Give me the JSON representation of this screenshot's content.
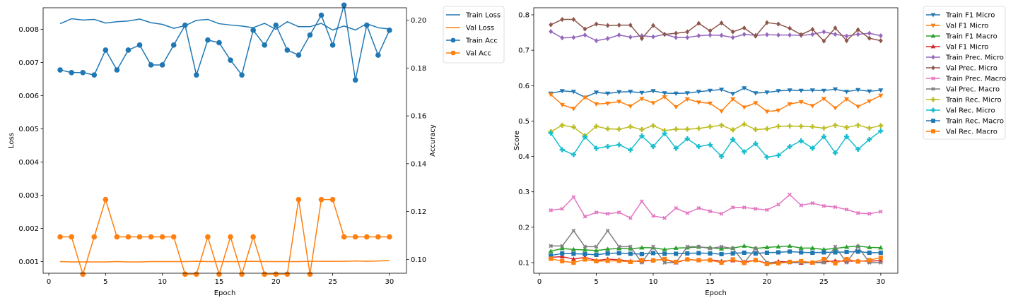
{
  "chart_data": [
    {
      "type": "line",
      "xlabel": "Epoch",
      "ylabel": "Loss",
      "y2label": "Accuracy",
      "xlim": [
        -0.5,
        31.5
      ],
      "ylim": [
        0.00065,
        0.00865
      ],
      "y2lim": [
        0.0942,
        0.2052
      ],
      "xticks": [
        "0",
        "5",
        "10",
        "15",
        "20",
        "25",
        "30"
      ],
      "yticks": [
        "0.001",
        "0.002",
        "0.003",
        "0.004",
        "0.005",
        "0.006",
        "0.007",
        "0.008"
      ],
      "y2ticks": [
        "0.10",
        "0.12",
        "0.14",
        "0.16",
        "0.18",
        "0.20"
      ],
      "legend_position": "outside-right",
      "x": [
        1,
        2,
        3,
        4,
        5,
        6,
        7,
        8,
        9,
        10,
        11,
        12,
        13,
        14,
        15,
        16,
        17,
        18,
        19,
        20,
        21,
        22,
        23,
        24,
        25,
        26,
        27,
        28,
        29,
        30
      ],
      "series": [
        {
          "name": "Train Loss",
          "axis": "left",
          "color": "#1f77b4",
          "marker": "none",
          "values": [
            0.00817,
            0.00832,
            0.00828,
            0.0083,
            0.00819,
            0.00823,
            0.00825,
            0.00831,
            0.0082,
            0.00815,
            0.00803,
            0.00811,
            0.00827,
            0.0083,
            0.00817,
            0.00813,
            0.0081,
            0.00805,
            0.00818,
            0.008,
            0.00823,
            0.00808,
            0.00808,
            0.00818,
            0.00798,
            0.0081,
            0.00798,
            0.00817,
            0.00805,
            0.00801
          ]
        },
        {
          "name": "Val Loss",
          "axis": "left",
          "color": "#ff7f0e",
          "marker": "none",
          "values": [
            0.001,
            0.00099,
            0.00099,
            0.00099,
            0.00099,
            0.001,
            0.00099,
            0.00099,
            0.001,
            0.001,
            0.001,
            0.001,
            0.00101,
            0.001,
            0.001,
            0.001,
            0.001,
            0.00101,
            0.001,
            0.001,
            0.001,
            0.001,
            0.00101,
            0.00101,
            0.00101,
            0.00101,
            0.00102,
            0.00101,
            0.00102,
            0.00103
          ]
        },
        {
          "name": "Train Acc",
          "axis": "right",
          "color": "#1f77b4",
          "marker": "circle",
          "values": [
            0.1792,
            0.1781,
            0.1781,
            0.1771,
            0.1875,
            0.1792,
            0.1875,
            0.1896,
            0.1813,
            0.1813,
            0.1896,
            0.1979,
            0.1771,
            0.1917,
            0.1906,
            0.1833,
            0.1771,
            0.1958,
            0.1896,
            0.1979,
            0.1875,
            0.1854,
            0.1938,
            0.2021,
            0.1896,
            0.2063,
            0.175,
            0.1979,
            0.1854,
            0.1958
          ]
        },
        {
          "name": "Val Acc",
          "axis": "right",
          "color": "#ff7f0e",
          "marker": "circle",
          "values": [
            0.1094,
            0.1094,
            0.0938,
            0.1094,
            0.125,
            0.1094,
            0.1094,
            0.1094,
            0.1094,
            0.1094,
            0.1094,
            0.0938,
            0.0938,
            0.1094,
            0.0938,
            0.1094,
            0.0938,
            0.1094,
            0.0938,
            0.0938,
            0.0938,
            0.125,
            0.0938,
            0.125,
            0.125,
            0.1094,
            0.1094,
            0.1094,
            0.1094,
            0.1094
          ]
        }
      ]
    },
    {
      "type": "line",
      "xlabel": "Epoch",
      "ylabel": "Score",
      "xlim": [
        -0.5,
        31.5
      ],
      "ylim": [
        0.07,
        0.82
      ],
      "xticks": [
        "0",
        "5",
        "10",
        "15",
        "20",
        "25",
        "30"
      ],
      "yticks": [
        "0.1",
        "0.2",
        "0.3",
        "0.4",
        "0.5",
        "0.6",
        "0.7",
        "0.8"
      ],
      "legend_position": "outside-right",
      "x": [
        1,
        2,
        3,
        4,
        5,
        6,
        7,
        8,
        9,
        10,
        11,
        12,
        13,
        14,
        15,
        16,
        17,
        18,
        19,
        20,
        21,
        22,
        23,
        24,
        25,
        26,
        27,
        28,
        29,
        30
      ],
      "series": [
        {
          "name": "Train F1 Micro",
          "color": "#1f77b4",
          "marker": "tri_down",
          "values": [
            0.578,
            0.585,
            0.583,
            0.567,
            0.581,
            0.578,
            0.582,
            0.583,
            0.58,
            0.585,
            0.579,
            0.578,
            0.579,
            0.583,
            0.586,
            0.589,
            0.577,
            0.593,
            0.579,
            0.581,
            0.585,
            0.587,
            0.586,
            0.587,
            0.586,
            0.59,
            0.583,
            0.588,
            0.584,
            0.587
          ]
        },
        {
          "name": "Val F1 Micro",
          "color": "#ff7f0e",
          "marker": "tri_down",
          "values": [
            0.575,
            0.546,
            0.535,
            0.567,
            0.548,
            0.55,
            0.555,
            0.542,
            0.563,
            0.551,
            0.568,
            0.54,
            0.562,
            0.553,
            0.55,
            0.528,
            0.562,
            0.539,
            0.551,
            0.527,
            0.53,
            0.548,
            0.554,
            0.543,
            0.563,
            0.537,
            0.562,
            0.541,
            0.556,
            0.572
          ]
        },
        {
          "name": "Train F1 Macro",
          "color": "#2ca02c",
          "marker": "tri_up",
          "values": [
            0.132,
            0.14,
            0.137,
            0.136,
            0.134,
            0.138,
            0.14,
            0.139,
            0.142,
            0.142,
            0.137,
            0.141,
            0.142,
            0.144,
            0.142,
            0.139,
            0.141,
            0.147,
            0.14,
            0.143,
            0.145,
            0.147,
            0.141,
            0.141,
            0.137,
            0.14,
            0.144,
            0.147,
            0.143,
            0.142
          ]
        },
        {
          "name": "Val F1 Micro",
          "color": "#d62728",
          "marker": "tri_up",
          "values": [
            0.115,
            0.117,
            0.11,
            0.115,
            0.106,
            0.11,
            0.108,
            0.104,
            0.104,
            0.107,
            0.109,
            0.1,
            0.109,
            0.106,
            0.108,
            0.104,
            0.106,
            0.102,
            0.107,
            0.098,
            0.103,
            0.102,
            0.099,
            0.1,
            0.102,
            0.105,
            0.104,
            0.105,
            0.104,
            0.106
          ]
        },
        {
          "name": "Train Prec. Micro",
          "color": "#9467bd",
          "marker": "diamond",
          "values": [
            0.753,
            0.735,
            0.736,
            0.743,
            0.727,
            0.733,
            0.743,
            0.737,
            0.741,
            0.738,
            0.745,
            0.736,
            0.736,
            0.741,
            0.743,
            0.742,
            0.736,
            0.745,
            0.742,
            0.744,
            0.743,
            0.743,
            0.742,
            0.745,
            0.752,
            0.745,
            0.74,
            0.745,
            0.748,
            0.741
          ]
        },
        {
          "name": "Val Prec. Micro",
          "color": "#8c564b",
          "marker": "diamond",
          "values": [
            0.772,
            0.787,
            0.787,
            0.76,
            0.774,
            0.77,
            0.771,
            0.771,
            0.733,
            0.77,
            0.745,
            0.748,
            0.752,
            0.776,
            0.755,
            0.777,
            0.752,
            0.763,
            0.74,
            0.778,
            0.774,
            0.762,
            0.744,
            0.759,
            0.726,
            0.763,
            0.727,
            0.758,
            0.734,
            0.727
          ]
        },
        {
          "name": "Train Prec. Macro",
          "color": "#e377c2",
          "marker": "x",
          "values": [
            0.248,
            0.252,
            0.285,
            0.23,
            0.242,
            0.238,
            0.242,
            0.226,
            0.273,
            0.232,
            0.226,
            0.254,
            0.24,
            0.254,
            0.245,
            0.238,
            0.256,
            0.256,
            0.252,
            0.249,
            0.264,
            0.292,
            0.262,
            0.268,
            0.26,
            0.257,
            0.25,
            0.24,
            0.238,
            0.244
          ]
        },
        {
          "name": "Val Prec. Macro",
          "color": "#7f7f7f",
          "marker": "x",
          "values": [
            0.147,
            0.147,
            0.19,
            0.145,
            0.145,
            0.19,
            0.145,
            0.145,
            0.1,
            0.145,
            0.1,
            0.1,
            0.145,
            0.145,
            0.14,
            0.145,
            0.14,
            0.1,
            0.14,
            0.1,
            0.1,
            0.1,
            0.1,
            0.1,
            0.1,
            0.145,
            0.1,
            0.145,
            0.1,
            0.1
          ]
        },
        {
          "name": "Train Rec. Micro",
          "color": "#bcbd22",
          "marker": "plus",
          "values": [
            0.47,
            0.488,
            0.483,
            0.458,
            0.485,
            0.478,
            0.477,
            0.484,
            0.476,
            0.487,
            0.473,
            0.477,
            0.477,
            0.479,
            0.484,
            0.488,
            0.475,
            0.491,
            0.476,
            0.478,
            0.485,
            0.486,
            0.485,
            0.484,
            0.48,
            0.488,
            0.482,
            0.488,
            0.48,
            0.487
          ]
        },
        {
          "name": "Val Rec. Micro",
          "color": "#17becf",
          "marker": "plus",
          "values": [
            0.466,
            0.419,
            0.405,
            0.455,
            0.423,
            0.428,
            0.433,
            0.418,
            0.458,
            0.428,
            0.465,
            0.423,
            0.45,
            0.428,
            0.433,
            0.4,
            0.448,
            0.413,
            0.436,
            0.398,
            0.403,
            0.428,
            0.444,
            0.423,
            0.456,
            0.41,
            0.456,
            0.42,
            0.448,
            0.472
          ]
        },
        {
          "name": "Train Rec. Macro",
          "color": "#1f77b4",
          "marker": "square",
          "values": [
            0.12,
            0.126,
            0.125,
            0.124,
            0.122,
            0.126,
            0.127,
            0.125,
            0.124,
            0.127,
            0.125,
            0.125,
            0.126,
            0.127,
            0.126,
            0.124,
            0.126,
            0.128,
            0.126,
            0.128,
            0.129,
            0.131,
            0.129,
            0.128,
            0.129,
            0.129,
            0.13,
            0.131,
            0.128,
            0.128
          ]
        },
        {
          "name": "Val Rec. Macro",
          "color": "#ff7f0e",
          "marker": "square",
          "values": [
            0.111,
            0.104,
            0.1,
            0.109,
            0.104,
            0.105,
            0.105,
            0.102,
            0.107,
            0.106,
            0.11,
            0.102,
            0.109,
            0.107,
            0.107,
            0.1,
            0.109,
            0.099,
            0.107,
            0.096,
            0.098,
            0.102,
            0.104,
            0.1,
            0.11,
            0.098,
            0.11,
            0.103,
            0.107,
            0.114
          ]
        }
      ]
    }
  ]
}
